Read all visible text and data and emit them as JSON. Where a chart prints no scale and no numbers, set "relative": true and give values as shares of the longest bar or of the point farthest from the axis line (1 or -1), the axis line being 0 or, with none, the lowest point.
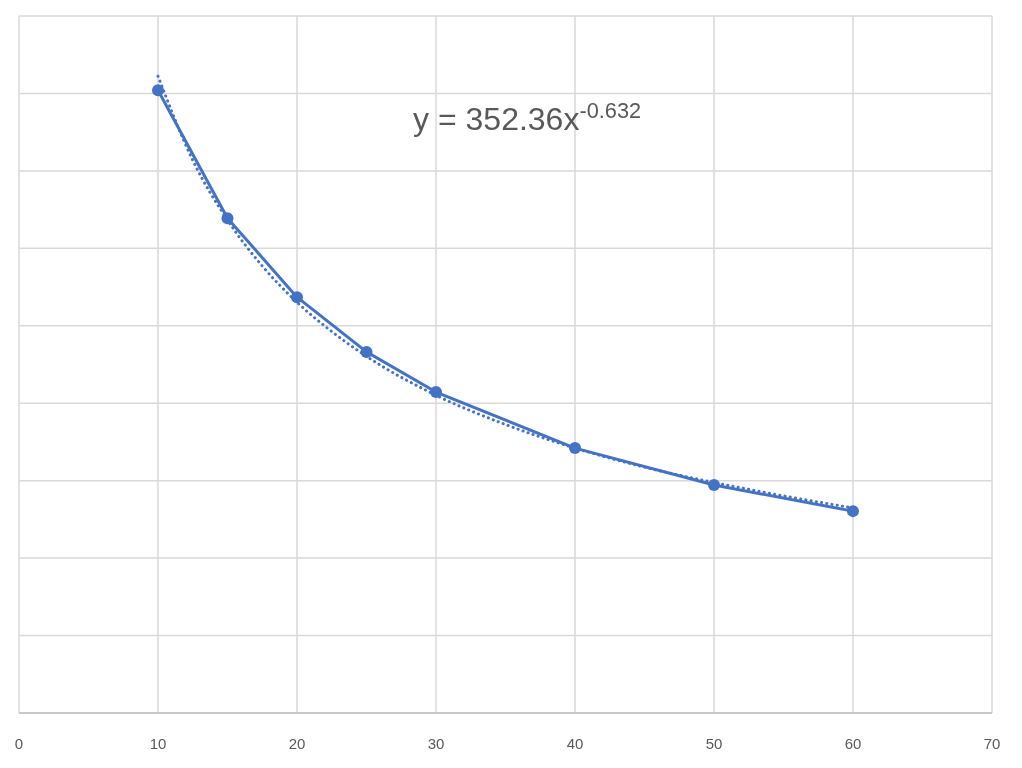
{
  "chart_data": {
    "type": "line",
    "relative": true,
    "xlim": [
      0,
      70
    ],
    "xticks": [
      0,
      10,
      20,
      30,
      40,
      50,
      60,
      70
    ],
    "grid": true,
    "marker": "circle",
    "line_style": "solid",
    "series": [
      {
        "color": "#4472c4",
        "x": [
          10,
          15,
          20,
          25,
          30,
          40,
          50,
          60
        ],
        "values": [
          0.978,
          0.777,
          0.653,
          0.567,
          0.504,
          0.416,
          0.358,
          0.317
        ]
      },
      {
        "type": "line",
        "color": "#4472c4",
        "line_style": "dotted",
        "marker": "none",
        "x": [
          10,
          12.5,
          15,
          17.5,
          20,
          22.5,
          25,
          30,
          35,
          40,
          45,
          50,
          55,
          60
        ],
        "values": [
          1,
          0.868,
          0.774,
          0.702,
          0.645,
          0.599,
          0.56,
          0.499,
          0.453,
          0.416,
          0.386,
          0.362,
          0.341,
          0.322
        ]
      }
    ],
    "annotations": [
      "y = 352.36x$^{-0.632}$"
    ]
  }
}
